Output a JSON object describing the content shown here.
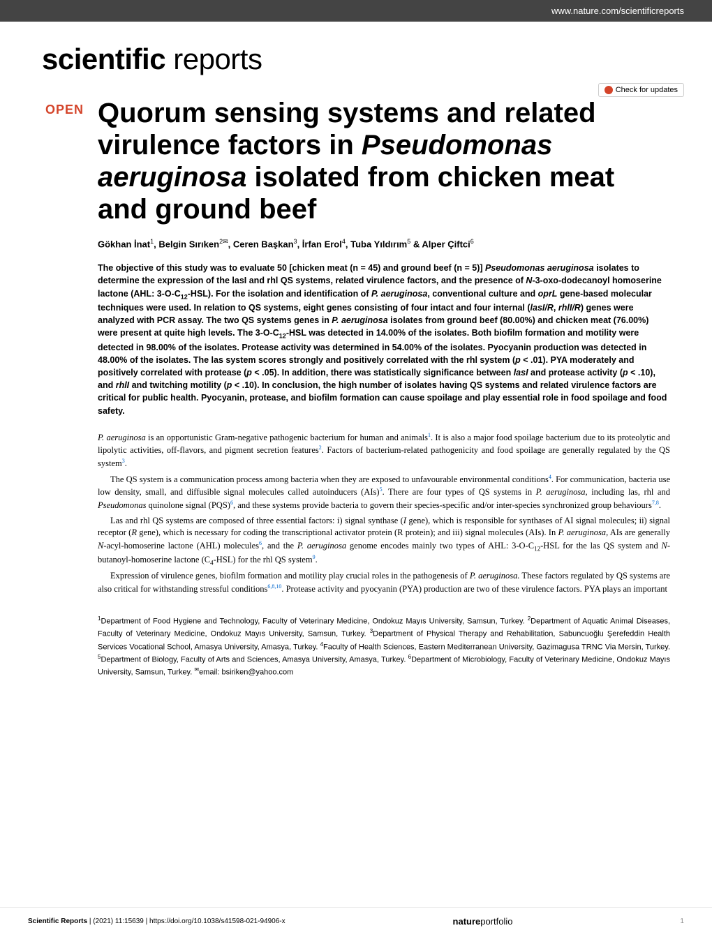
{
  "header": {
    "url": "www.nature.com/scientificreports"
  },
  "logo": {
    "bold": "scientific",
    "light": " reports"
  },
  "updates_label": "Check for updates",
  "open_badge": "OPEN",
  "title_html": "Quorum sensing systems and related virulence factors in <em>Pseudomonas aeruginosa</em> isolated from chicken meat and ground beef",
  "authors_html": "Gökhan İnat<sup>1</sup>, Belgin Sırıken<sup>2✉</sup>, Ceren Başkan<sup>3</sup>, İrfan Erol<sup>4</sup>, Tuba Yıldırım<sup>5</sup> & Alper Çiftci<sup>6</sup>",
  "abstract_html": "The objective of this study was to evaluate 50 [chicken meat (n = 45) and ground beef (n = 5)] <em>Pseudomonas aeruginosa</em> isolates to determine the expression of the lasI and rhl QS systems, related virulence factors, and the presence of <em>N</em>-3-oxo-dodecanoyl homoserine lactone (AHL: 3-O-C<sub>12</sub>-HSL). For the isolation and identification of <em>P. aeruginosa</em>, conventional culture and <em>oprL</em> gene-based molecular techniques were used. In relation to QS systems, eight genes consisting of four intact and four internal (<em>lasI/R</em>, <em>rhlI/R</em>) genes were analyzed with PCR assay. The two QS systems genes in <em>P. aeruginosa</em> isolates from ground beef (80.00%) and chicken meat (76.00%) were present at quite high levels. The 3-O-C<sub>12</sub>-HSL was detected in 14.00% of the isolates. Both biofilm formation and motility were detected in 98.00% of the isolates. Protease activity was determined in 54.00% of the isolates. Pyocyanin production was detected in 48.00% of the isolates. The las system scores strongly and positively correlated with the rhl system (<em>p</em> < .01). PYA moderately and positively correlated with protease (<em>p</em> < .05). In addition, there was statistically significance between <em>lasI</em> and protease activity (<em>p</em> < .10), and <em>rhlI</em> and twitching motility (<em>p</em> < .10). In conclusion, the high number of isolates having QS systems and related virulence factors are critical for public health. Pyocyanin, protease, and biofilm formation can cause spoilage and play essential role in food spoilage and food safety.",
  "body": [
    "<em>P. aeruginosa</em> is an opportunistic Gram-negative pathogenic bacterium for human and animals<sup>1</sup>. It is also a major food spoilage bacterium due to its proteolytic and lipolytic activities, off-flavors, and pigment secretion features<sup>2</sup>. Factors of bacterium-related pathogenicity and food spoilage are generally regulated by the QS system<sup>3</sup>.",
    "The QS system is a communication process among bacteria when they are exposed to unfavourable environmental conditions<sup>4</sup>. For communication, bacteria use low density, small, and diffusible signal molecules called autoinducers (AIs)<sup>5</sup>. There are four types of QS systems in <em>P. aeruginosa,</em> including las, rhl and <em>Pseudomonas</em> quinolone signal (PQS)<sup>6</sup>, and these systems provide bacteria to govern their species-specific and/or inter-species synchronized group behaviours<sup>7,8</sup>.",
    "Las and rhl QS systems are composed of three essential factors: i) signal synthase (<em>I</em> gene), which is responsible for synthases of AI signal molecules; ii) signal receptor (<em>R</em> gene), which is necessary for coding the transcriptional activator protein (R protein); and iii) signal molecules (AIs). In <em>P. aeruginosa</em>, AIs are generally <em>N</em>-acyl-homoserine lactone (AHL) molecules<sup>6</sup>, and the <em>P. aeruginosa</em> genome encodes mainly two types of AHL: 3-O-C<sub>12</sub>-HSL for the las QS system and <em>N</em>-butanoyl-homoserine lactone (C<sub>4</sub>-HSL) for the rhl QS system<sup>9</sup>.",
    "Expression of virulence genes, biofilm formation and motility play crucial roles in the pathogenesis of <em>P. aeruginosa.</em> These factors regulated by QS systems are also critical for withstanding stressful conditions<sup>6,8,10</sup>. Protease activity and pyocyanin (PYA) production are two of these virulence factors. PYA plays an important"
  ],
  "affiliations_html": "<sup>1</sup>Department of Food Hygiene and Technology, Faculty of Veterinary Medicine, Ondokuz Mayıs University, Samsun, Turkey. <sup>2</sup>Department of Aquatic Animal Diseases, Faculty of Veterinary Medicine, Ondokuz Mayıs University, Samsun, Turkey. <sup>3</sup>Department of Physical Therapy and Rehabilitation, Sabuncuoğlu Şerefeddin Health Services Vocational School, Amasya University, Amasya, Turkey. <sup>4</sup>Faculty of Health Sciences, Eastern Mediterranean University, Gazimagusa TRNC Via Mersin, Turkey. <sup>5</sup>Department of Biology, Faculty of Arts and Sciences, Amasya University, Amasya, Turkey. <sup>6</sup>Department of Microbiology, Faculty of Veterinary Medicine, Ondokuz Mayıs University, Samsun, Turkey. <sup>✉</sup>email: bsiriken@yahoo.com",
  "footer": {
    "journal": "Scientific Reports",
    "citation": "(2021) 11:15639",
    "doi": "https://doi.org/10.1038/s41598-021-94906-x",
    "publisher_bold": "nature",
    "publisher_light": "portfolio",
    "page": "1"
  },
  "colors": {
    "accent": "#d4442a",
    "header_bg": "#444444",
    "link": "#0066cc",
    "text": "#000000",
    "bg": "#ffffff"
  },
  "typography": {
    "title_size": 40,
    "body_size": 12.5,
    "abstract_size": 12.5,
    "logo_size": 42
  }
}
